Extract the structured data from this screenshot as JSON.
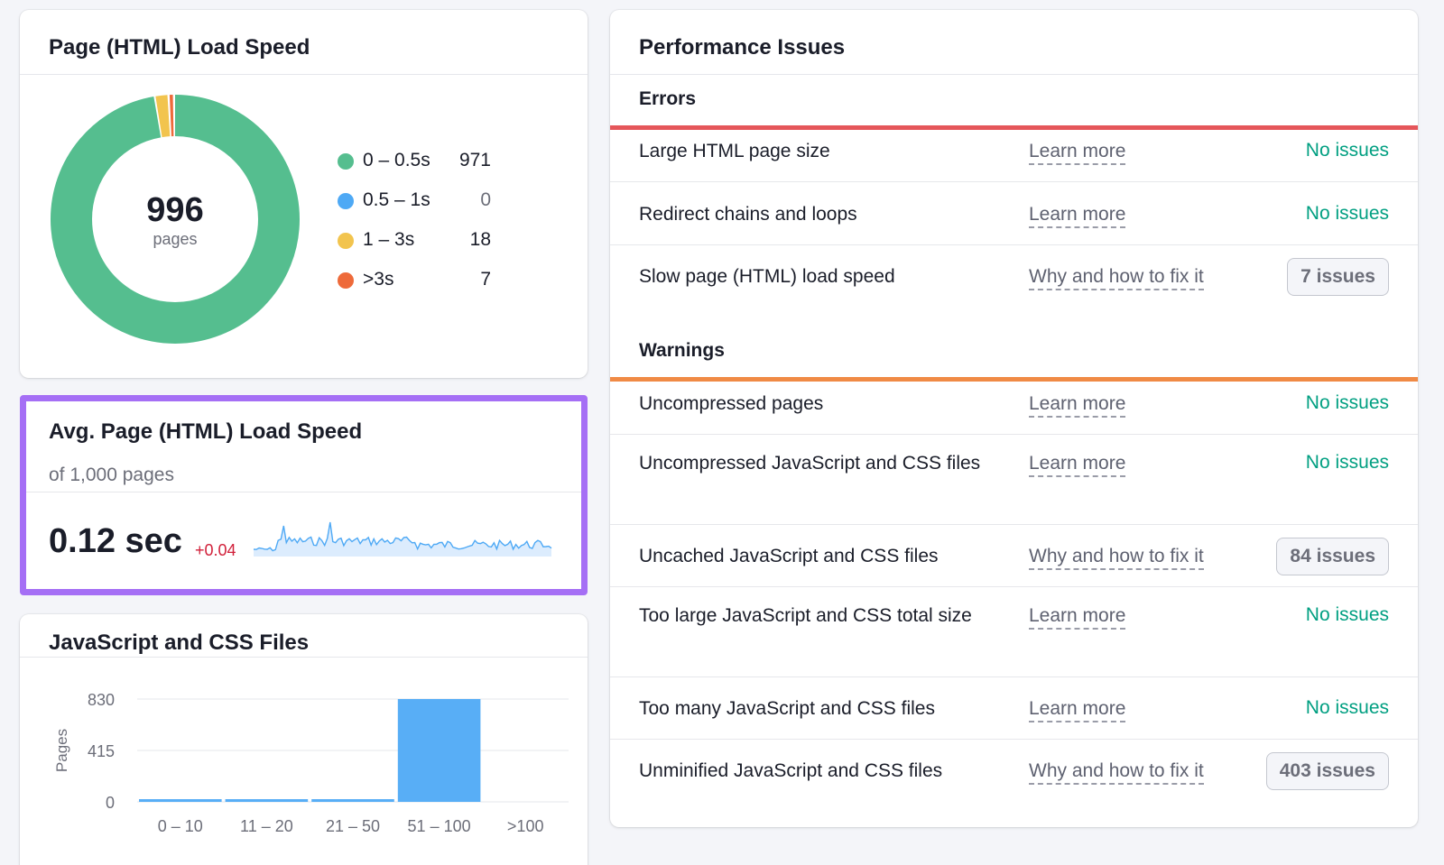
{
  "load_speed": {
    "title": "Page (HTML) Load Speed",
    "total": "996",
    "total_label": "pages",
    "legend": [
      {
        "label": "0 – 0.5s",
        "count": "971",
        "color": "#55be8f"
      },
      {
        "label": "0.5 – 1s",
        "count": "0",
        "color": "#4ea9f5"
      },
      {
        "label": "1 – 3s",
        "count": "18",
        "color": "#f2c44e"
      },
      {
        "label": ">3s",
        "count": "7",
        "color": "#ee6a3a"
      }
    ]
  },
  "avg_speed": {
    "title": "Avg. Page (HTML) Load Speed",
    "subtitle": "of 1,000 pages",
    "value": "0.12 sec",
    "delta": "+0.04",
    "highlight_color": "#a56ff5"
  },
  "js_css": {
    "title": "JavaScript and CSS Files",
    "chart_data": {
      "type": "bar",
      "categories": [
        "0 – 10",
        "11 – 20",
        "21 – 50",
        "51 – 100",
        ">100"
      ],
      "values": [
        5,
        5,
        5,
        830,
        0
      ],
      "ylabel": "Pages",
      "yticks": [
        "830",
        "415",
        "0"
      ],
      "ylim": [
        0,
        830
      ],
      "bar_color": "#58aef6"
    }
  },
  "performance": {
    "title": "Performance Issues",
    "errors_title": "Errors",
    "errors_color": "#e5565a",
    "warnings_title": "Warnings",
    "warnings_color": "#f08a45",
    "errors": [
      {
        "name": "Large HTML page size",
        "link": "Learn more",
        "status": "No issues"
      },
      {
        "name": "Redirect chains and loops",
        "link": "Learn more",
        "status": "No issues"
      },
      {
        "name": "Slow page (HTML) load speed",
        "link": "Why and how to fix it",
        "badge": "7 issues"
      }
    ],
    "warnings": [
      {
        "name": "Uncompressed pages",
        "link": "Learn more",
        "status": "No issues"
      },
      {
        "name": "Uncompressed JavaScript and CSS files",
        "link": "Learn more",
        "status": "No issues"
      },
      {
        "name": "Uncached JavaScript and CSS files",
        "link": "Why and how to fix it",
        "badge": "84 issues"
      },
      {
        "name": "Too large JavaScript and CSS total size",
        "link": "Learn more",
        "status": "No issues"
      },
      {
        "name": "Too many JavaScript and CSS files",
        "link": "Learn more",
        "status": "No issues"
      },
      {
        "name": "Unminified JavaScript and CSS files",
        "link": "Why and how to fix it",
        "badge": "403 issues"
      }
    ]
  }
}
